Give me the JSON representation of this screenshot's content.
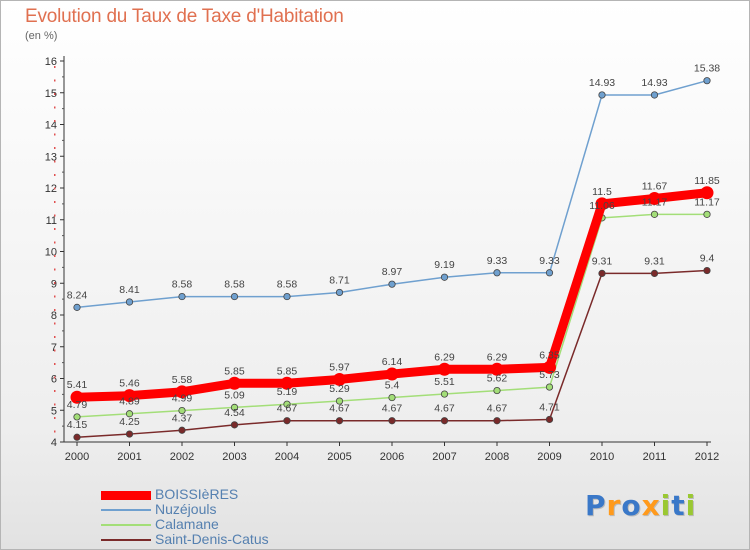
{
  "title": "Evolution du Taux de Taxe d'Habitation",
  "subtitle": "(en %)",
  "brand": {
    "text": "Proxiti",
    "colors": [
      "#3a78c8",
      "#ff9a1c",
      "#3a78c8",
      "#ff9a1c",
      "#9ac832",
      "#3a78c8",
      "#9ac832"
    ]
  },
  "chart_data": {
    "type": "line",
    "x": [
      "2000",
      "2001",
      "2002",
      "2003",
      "2004",
      "2005",
      "2006",
      "2007",
      "2008",
      "2009",
      "2010",
      "2011",
      "2012"
    ],
    "ylim": [
      4,
      16
    ],
    "yticks": [
      "4",
      "5",
      "6",
      "7",
      "8",
      "9",
      "10",
      "11",
      "12",
      "13",
      "14",
      "15",
      "16"
    ],
    "grid": false,
    "legend_position": "bottom-left",
    "series": [
      {
        "name": "BOISSIèRES",
        "color": "#ff0000",
        "width": 9,
        "values": [
          5.41,
          5.46,
          5.58,
          5.85,
          5.85,
          5.97,
          6.14,
          6.29,
          6.29,
          6.35,
          11.5,
          11.67,
          11.85
        ],
        "labels": [
          "5.41",
          "5.46",
          "5.58",
          "5.85",
          "5.85",
          "5.97",
          "6.14",
          "6.29",
          "6.29",
          "6.35",
          "11.5",
          "11.67",
          "11.85"
        ]
      },
      {
        "name": "Nuzéjouls",
        "color": "#6fa0cf",
        "width": 1.5,
        "values": [
          8.24,
          8.41,
          8.58,
          8.58,
          8.58,
          8.71,
          8.97,
          9.19,
          9.33,
          9.33,
          14.93,
          14.93,
          15.38
        ],
        "labels": [
          "8.24",
          "8.41",
          "8.58",
          "8.58",
          "8.58",
          "8.71",
          "8.97",
          "9.19",
          "9.33",
          "9.33",
          "14.93",
          "14.93",
          "15.38"
        ]
      },
      {
        "name": "Calamane",
        "color": "#a3de78",
        "width": 1.5,
        "values": [
          4.79,
          4.89,
          4.99,
          5.09,
          5.19,
          5.29,
          5.4,
          5.51,
          5.62,
          5.73,
          11.06,
          11.17,
          11.17
        ],
        "labels": [
          "4.79",
          "4.89",
          "4.99",
          "5.09",
          "5.19",
          "5.29",
          "5.4",
          "5.51",
          "5.62",
          "5.73",
          "11.06",
          "11.17",
          "11.17"
        ]
      },
      {
        "name": "Saint-Denis-Catus",
        "color": "#7a2a2a",
        "width": 1.5,
        "values": [
          4.15,
          4.25,
          4.37,
          4.54,
          4.67,
          4.67,
          4.67,
          4.67,
          4.67,
          4.71,
          9.31,
          9.31,
          9.4
        ],
        "labels": [
          "4.15",
          "4.25",
          "4.37",
          "4.54",
          "4.67",
          "4.67",
          "4.67",
          "4.67",
          "4.67",
          "4.71",
          "9.31",
          "9.31",
          "9.4"
        ]
      }
    ]
  }
}
